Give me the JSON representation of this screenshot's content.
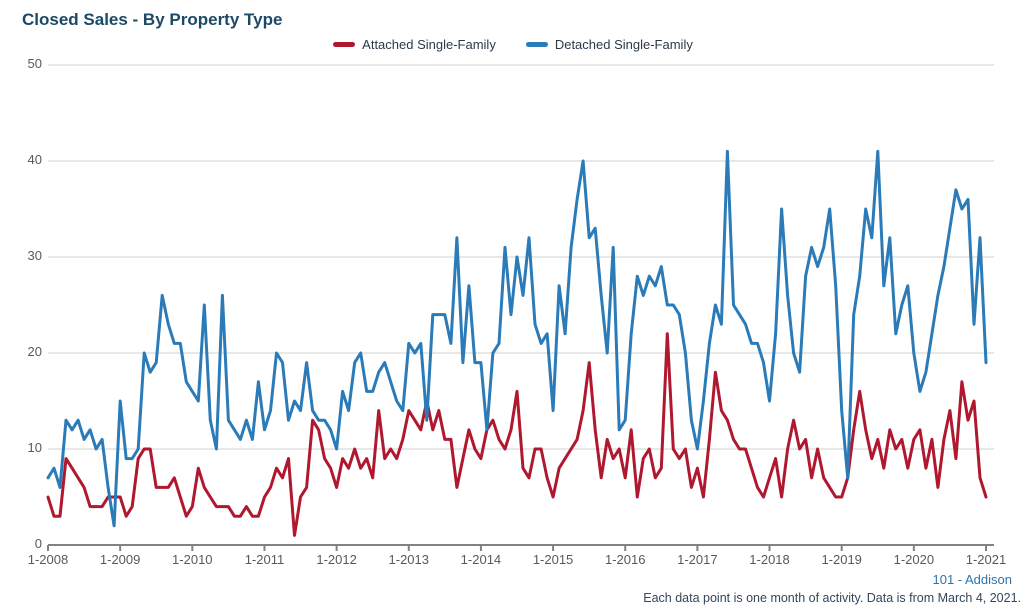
{
  "title": "Closed Sales - By Property Type",
  "footer": {
    "source": "101 - Addison",
    "note": "Each data point is one month of activity. Data is from March 4, 2021."
  },
  "colors": {
    "attached": "#b0182f",
    "detached": "#2b7bb9",
    "title": "#1c4966",
    "axis_text": "#58595b",
    "gridline": "#cfd1d2",
    "axis_line": "#808285"
  },
  "chart_data": {
    "type": "line",
    "title": "Closed Sales - By Property Type",
    "xlabel": "",
    "ylabel": "",
    "ylim": [
      0,
      50
    ],
    "grid": "horizontal",
    "legend_position": "top-center",
    "y_ticks": [
      0,
      10,
      20,
      30,
      40,
      50
    ],
    "x_ticks": [
      "1-2008",
      "1-2009",
      "1-2010",
      "1-2011",
      "1-2012",
      "1-2013",
      "1-2014",
      "1-2015",
      "1-2016",
      "1-2017",
      "1-2018",
      "1-2019",
      "1-2020",
      "1-2021"
    ],
    "x_months_start": "2008-01",
    "x_months_end": "2021-01",
    "series": [
      {
        "name": "Attached Single-Family",
        "color": "#b0182f",
        "values": [
          5,
          3,
          3,
          9,
          8,
          7,
          6,
          4,
          4,
          4,
          5,
          5,
          5,
          3,
          4,
          9,
          10,
          10,
          6,
          6,
          6,
          7,
          5,
          3,
          4,
          8,
          6,
          5,
          4,
          4,
          4,
          3,
          3,
          4,
          3,
          3,
          5,
          6,
          8,
          7,
          9,
          1,
          5,
          6,
          13,
          12,
          9,
          8,
          6,
          9,
          8,
          10,
          8,
          9,
          7,
          14,
          9,
          10,
          9,
          11,
          14,
          13,
          12,
          15,
          12,
          14,
          11,
          11,
          6,
          9,
          12,
          10,
          9,
          12,
          13,
          11,
          10,
          12,
          16,
          8,
          7,
          10,
          10,
          7,
          5,
          8,
          9,
          10,
          11,
          14,
          19,
          12,
          7,
          11,
          9,
          10,
          7,
          12,
          5,
          9,
          10,
          7,
          8,
          22,
          10,
          9,
          10,
          6,
          8,
          5,
          11,
          18,
          14,
          13,
          11,
          10,
          10,
          8,
          6,
          5,
          7,
          9,
          5,
          10,
          13,
          10,
          11,
          7,
          10,
          7,
          6,
          5,
          5,
          7,
          12,
          16,
          12,
          9,
          11,
          8,
          12,
          10,
          11,
          8,
          11,
          12,
          8,
          11,
          6,
          11,
          14,
          9,
          17,
          13,
          15,
          7,
          5
        ]
      },
      {
        "name": "Detached Single-Family",
        "color": "#2b7bb9",
        "values": [
          7,
          8,
          6,
          13,
          12,
          13,
          11,
          12,
          10,
          11,
          6,
          2,
          15,
          9,
          9,
          10,
          20,
          18,
          19,
          26,
          23,
          21,
          21,
          17,
          16,
          15,
          25,
          13,
          10,
          26,
          13,
          12,
          11,
          13,
          11,
          17,
          12,
          14,
          20,
          19,
          13,
          15,
          14,
          19,
          14,
          13,
          13,
          12,
          10,
          16,
          14,
          19,
          20,
          16,
          16,
          18,
          19,
          17,
          15,
          14,
          21,
          20,
          21,
          13,
          24,
          24,
          24,
          21,
          32,
          19,
          27,
          19,
          19,
          12,
          20,
          21,
          31,
          24,
          30,
          26,
          32,
          23,
          21,
          22,
          14,
          27,
          22,
          31,
          36,
          40,
          32,
          33,
          26,
          20,
          31,
          12,
          13,
          22,
          28,
          26,
          28,
          27,
          29,
          25,
          25,
          24,
          20,
          13,
          10,
          15,
          21,
          25,
          23,
          41,
          25,
          24,
          23,
          21,
          21,
          19,
          15,
          22,
          35,
          26,
          20,
          18,
          28,
          31,
          29,
          31,
          35,
          27,
          14,
          7,
          24,
          28,
          35,
          32,
          41,
          27,
          32,
          22,
          25,
          27,
          20,
          16,
          18,
          22,
          26,
          29,
          33,
          37,
          35,
          36,
          23,
          32,
          19
        ]
      }
    ]
  }
}
